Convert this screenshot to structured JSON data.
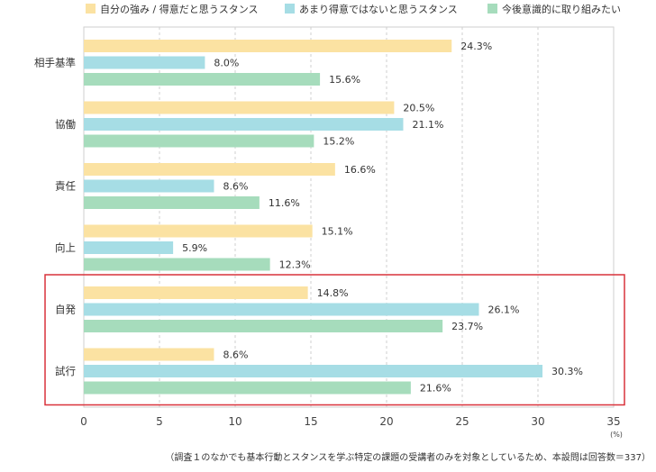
{
  "chart_data": {
    "type": "bar",
    "orientation": "horizontal",
    "categories": [
      "相手基準",
      "協働",
      "責任",
      "向上",
      "自発",
      "試行"
    ],
    "series": [
      {
        "name": "自分の強み / 得意だと思うスタンス",
        "color": "#fbe2a2",
        "values": [
          24.3,
          20.5,
          16.6,
          15.1,
          14.8,
          8.6
        ],
        "labels": [
          "24.3%",
          "20.5%",
          "16.6%",
          "15.1%",
          "14.8%",
          "8.6%"
        ]
      },
      {
        "name": "あまり得意ではないと思うスタンス",
        "color": "#a6dde5",
        "values": [
          8.0,
          21.1,
          8.6,
          5.9,
          26.1,
          30.3
        ],
        "labels": [
          "8.0%",
          "21.1%",
          "8.6%",
          "5.9%",
          "26.1%",
          "30.3%"
        ]
      },
      {
        "name": "今後意識的に取り組みたい",
        "color": "#a6dcbc",
        "values": [
          15.6,
          15.2,
          11.6,
          12.3,
          23.7,
          21.6
        ],
        "labels": [
          "15.6%",
          "15.2%",
          "11.6%",
          "12.3%",
          "23.7%",
          "21.6%"
        ]
      }
    ],
    "xlim": [
      0,
      35
    ],
    "xticks": [
      "0",
      "5",
      "10",
      "15",
      "20",
      "25",
      "30",
      "35"
    ],
    "xunit": "(%)",
    "grid": true,
    "legend_position": "top",
    "highlight": {
      "categories": [
        "自発",
        "試行"
      ],
      "color": "#d9323b"
    },
    "note": "（調査１のなかでも基本行動とスタンスを学ぶ特定の課題の受講者のみを対象としているため、本設問は回答数＝337）"
  }
}
